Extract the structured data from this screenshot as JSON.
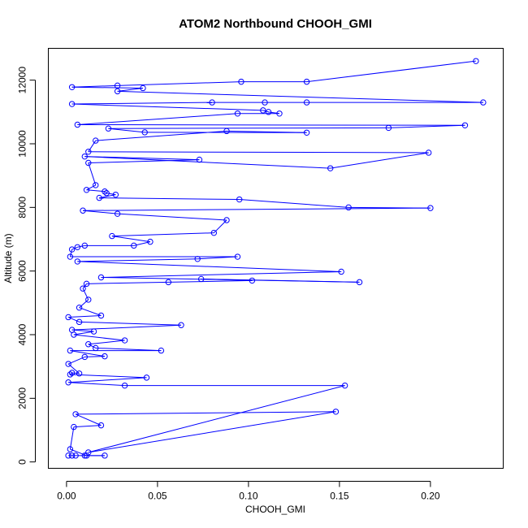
{
  "chart_data": {
    "type": "line",
    "title": "ATOM2 Northbound CHOOH_GMI",
    "xlabel": "CHOOH_GMI",
    "ylabel": "Altitude (m)",
    "xlim": [
      -0.01,
      0.24
    ],
    "ylim": [
      -200,
      13000
    ],
    "xticks": [
      0.0,
      0.05,
      0.1,
      0.15,
      0.2
    ],
    "xtick_labels": [
      "0.00",
      "0.05",
      "0.10",
      "0.15",
      "0.20"
    ],
    "yticks": [
      0,
      2000,
      4000,
      6000,
      8000,
      10000,
      12000
    ],
    "ytick_labels": [
      "0",
      "2000",
      "4000",
      "6000",
      "8000",
      "10000",
      "12000"
    ],
    "grid": false,
    "legend": "none",
    "series_color": "#0000ff",
    "points": [
      {
        "x": 0.001,
        "y": 200
      },
      {
        "x": 0.003,
        "y": 200
      },
      {
        "x": 0.005,
        "y": 200
      },
      {
        "x": 0.01,
        "y": 200
      },
      {
        "x": 0.021,
        "y": 200
      },
      {
        "x": 0.011,
        "y": 200
      },
      {
        "x": 0.002,
        "y": 400
      },
      {
        "x": 0.004,
        "y": 1100
      },
      {
        "x": 0.019,
        "y": 1150
      },
      {
        "x": 0.005,
        "y": 1500
      },
      {
        "x": 0.148,
        "y": 1580
      },
      {
        "x": 0.012,
        "y": 300
      },
      {
        "x": 0.153,
        "y": 2400
      },
      {
        "x": 0.032,
        "y": 2400
      },
      {
        "x": 0.001,
        "y": 2500
      },
      {
        "x": 0.044,
        "y": 2650
      },
      {
        "x": 0.002,
        "y": 2750
      },
      {
        "x": 0.003,
        "y": 2800
      },
      {
        "x": 0.007,
        "y": 2780
      },
      {
        "x": 0.001,
        "y": 3080
      },
      {
        "x": 0.01,
        "y": 3300
      },
      {
        "x": 0.021,
        "y": 3320
      },
      {
        "x": 0.002,
        "y": 3500
      },
      {
        "x": 0.052,
        "y": 3500
      },
      {
        "x": 0.016,
        "y": 3580
      },
      {
        "x": 0.012,
        "y": 3700
      },
      {
        "x": 0.032,
        "y": 3820
      },
      {
        "x": 0.004,
        "y": 4000
      },
      {
        "x": 0.015,
        "y": 4100
      },
      {
        "x": 0.003,
        "y": 4150
      },
      {
        "x": 0.063,
        "y": 4300
      },
      {
        "x": 0.007,
        "y": 4400
      },
      {
        "x": 0.001,
        "y": 4550
      },
      {
        "x": 0.019,
        "y": 4600
      },
      {
        "x": 0.007,
        "y": 4850
      },
      {
        "x": 0.012,
        "y": 5100
      },
      {
        "x": 0.009,
        "y": 5450
      },
      {
        "x": 0.011,
        "y": 5600
      },
      {
        "x": 0.056,
        "y": 5650
      },
      {
        "x": 0.102,
        "y": 5700
      },
      {
        "x": 0.074,
        "y": 5750
      },
      {
        "x": 0.161,
        "y": 5650
      },
      {
        "x": 0.019,
        "y": 5800
      },
      {
        "x": 0.151,
        "y": 5980
      },
      {
        "x": 0.006,
        "y": 6300
      },
      {
        "x": 0.072,
        "y": 6380
      },
      {
        "x": 0.094,
        "y": 6450
      },
      {
        "x": 0.002,
        "y": 6450
      },
      {
        "x": 0.003,
        "y": 6680
      },
      {
        "x": 0.006,
        "y": 6750
      },
      {
        "x": 0.01,
        "y": 6800
      },
      {
        "x": 0.037,
        "y": 6800
      },
      {
        "x": 0.046,
        "y": 6920
      },
      {
        "x": 0.025,
        "y": 7100
      },
      {
        "x": 0.081,
        "y": 7200
      },
      {
        "x": 0.088,
        "y": 7600
      },
      {
        "x": 0.028,
        "y": 7800
      },
      {
        "x": 0.009,
        "y": 7900
      },
      {
        "x": 0.2,
        "y": 7980
      },
      {
        "x": 0.155,
        "y": 8000
      },
      {
        "x": 0.095,
        "y": 8250
      },
      {
        "x": 0.018,
        "y": 8300
      },
      {
        "x": 0.027,
        "y": 8400
      },
      {
        "x": 0.022,
        "y": 8450
      },
      {
        "x": 0.021,
        "y": 8500
      },
      {
        "x": 0.011,
        "y": 8550
      },
      {
        "x": 0.016,
        "y": 8700
      },
      {
        "x": 0.012,
        "y": 9400
      },
      {
        "x": 0.073,
        "y": 9500
      },
      {
        "x": 0.01,
        "y": 9600
      },
      {
        "x": 0.145,
        "y": 9230
      },
      {
        "x": 0.199,
        "y": 9720
      },
      {
        "x": 0.012,
        "y": 9750
      },
      {
        "x": 0.016,
        "y": 10100
      },
      {
        "x": 0.088,
        "y": 10400
      },
      {
        "x": 0.132,
        "y": 10350
      },
      {
        "x": 0.043,
        "y": 10360
      },
      {
        "x": 0.023,
        "y": 10480
      },
      {
        "x": 0.177,
        "y": 10500
      },
      {
        "x": 0.219,
        "y": 10580
      },
      {
        "x": 0.006,
        "y": 10600
      },
      {
        "x": 0.094,
        "y": 10950
      },
      {
        "x": 0.117,
        "y": 10950
      },
      {
        "x": 0.111,
        "y": 11000
      },
      {
        "x": 0.108,
        "y": 11050
      },
      {
        "x": 0.003,
        "y": 11250
      },
      {
        "x": 0.08,
        "y": 11300
      },
      {
        "x": 0.109,
        "y": 11300
      },
      {
        "x": 0.132,
        "y": 11300
      },
      {
        "x": 0.229,
        "y": 11300
      },
      {
        "x": 0.028,
        "y": 11650
      },
      {
        "x": 0.042,
        "y": 11750
      },
      {
        "x": 0.003,
        "y": 11780
      },
      {
        "x": 0.028,
        "y": 11830
      },
      {
        "x": 0.096,
        "y": 11950
      },
      {
        "x": 0.132,
        "y": 11950
      },
      {
        "x": 0.225,
        "y": 12600
      }
    ]
  }
}
